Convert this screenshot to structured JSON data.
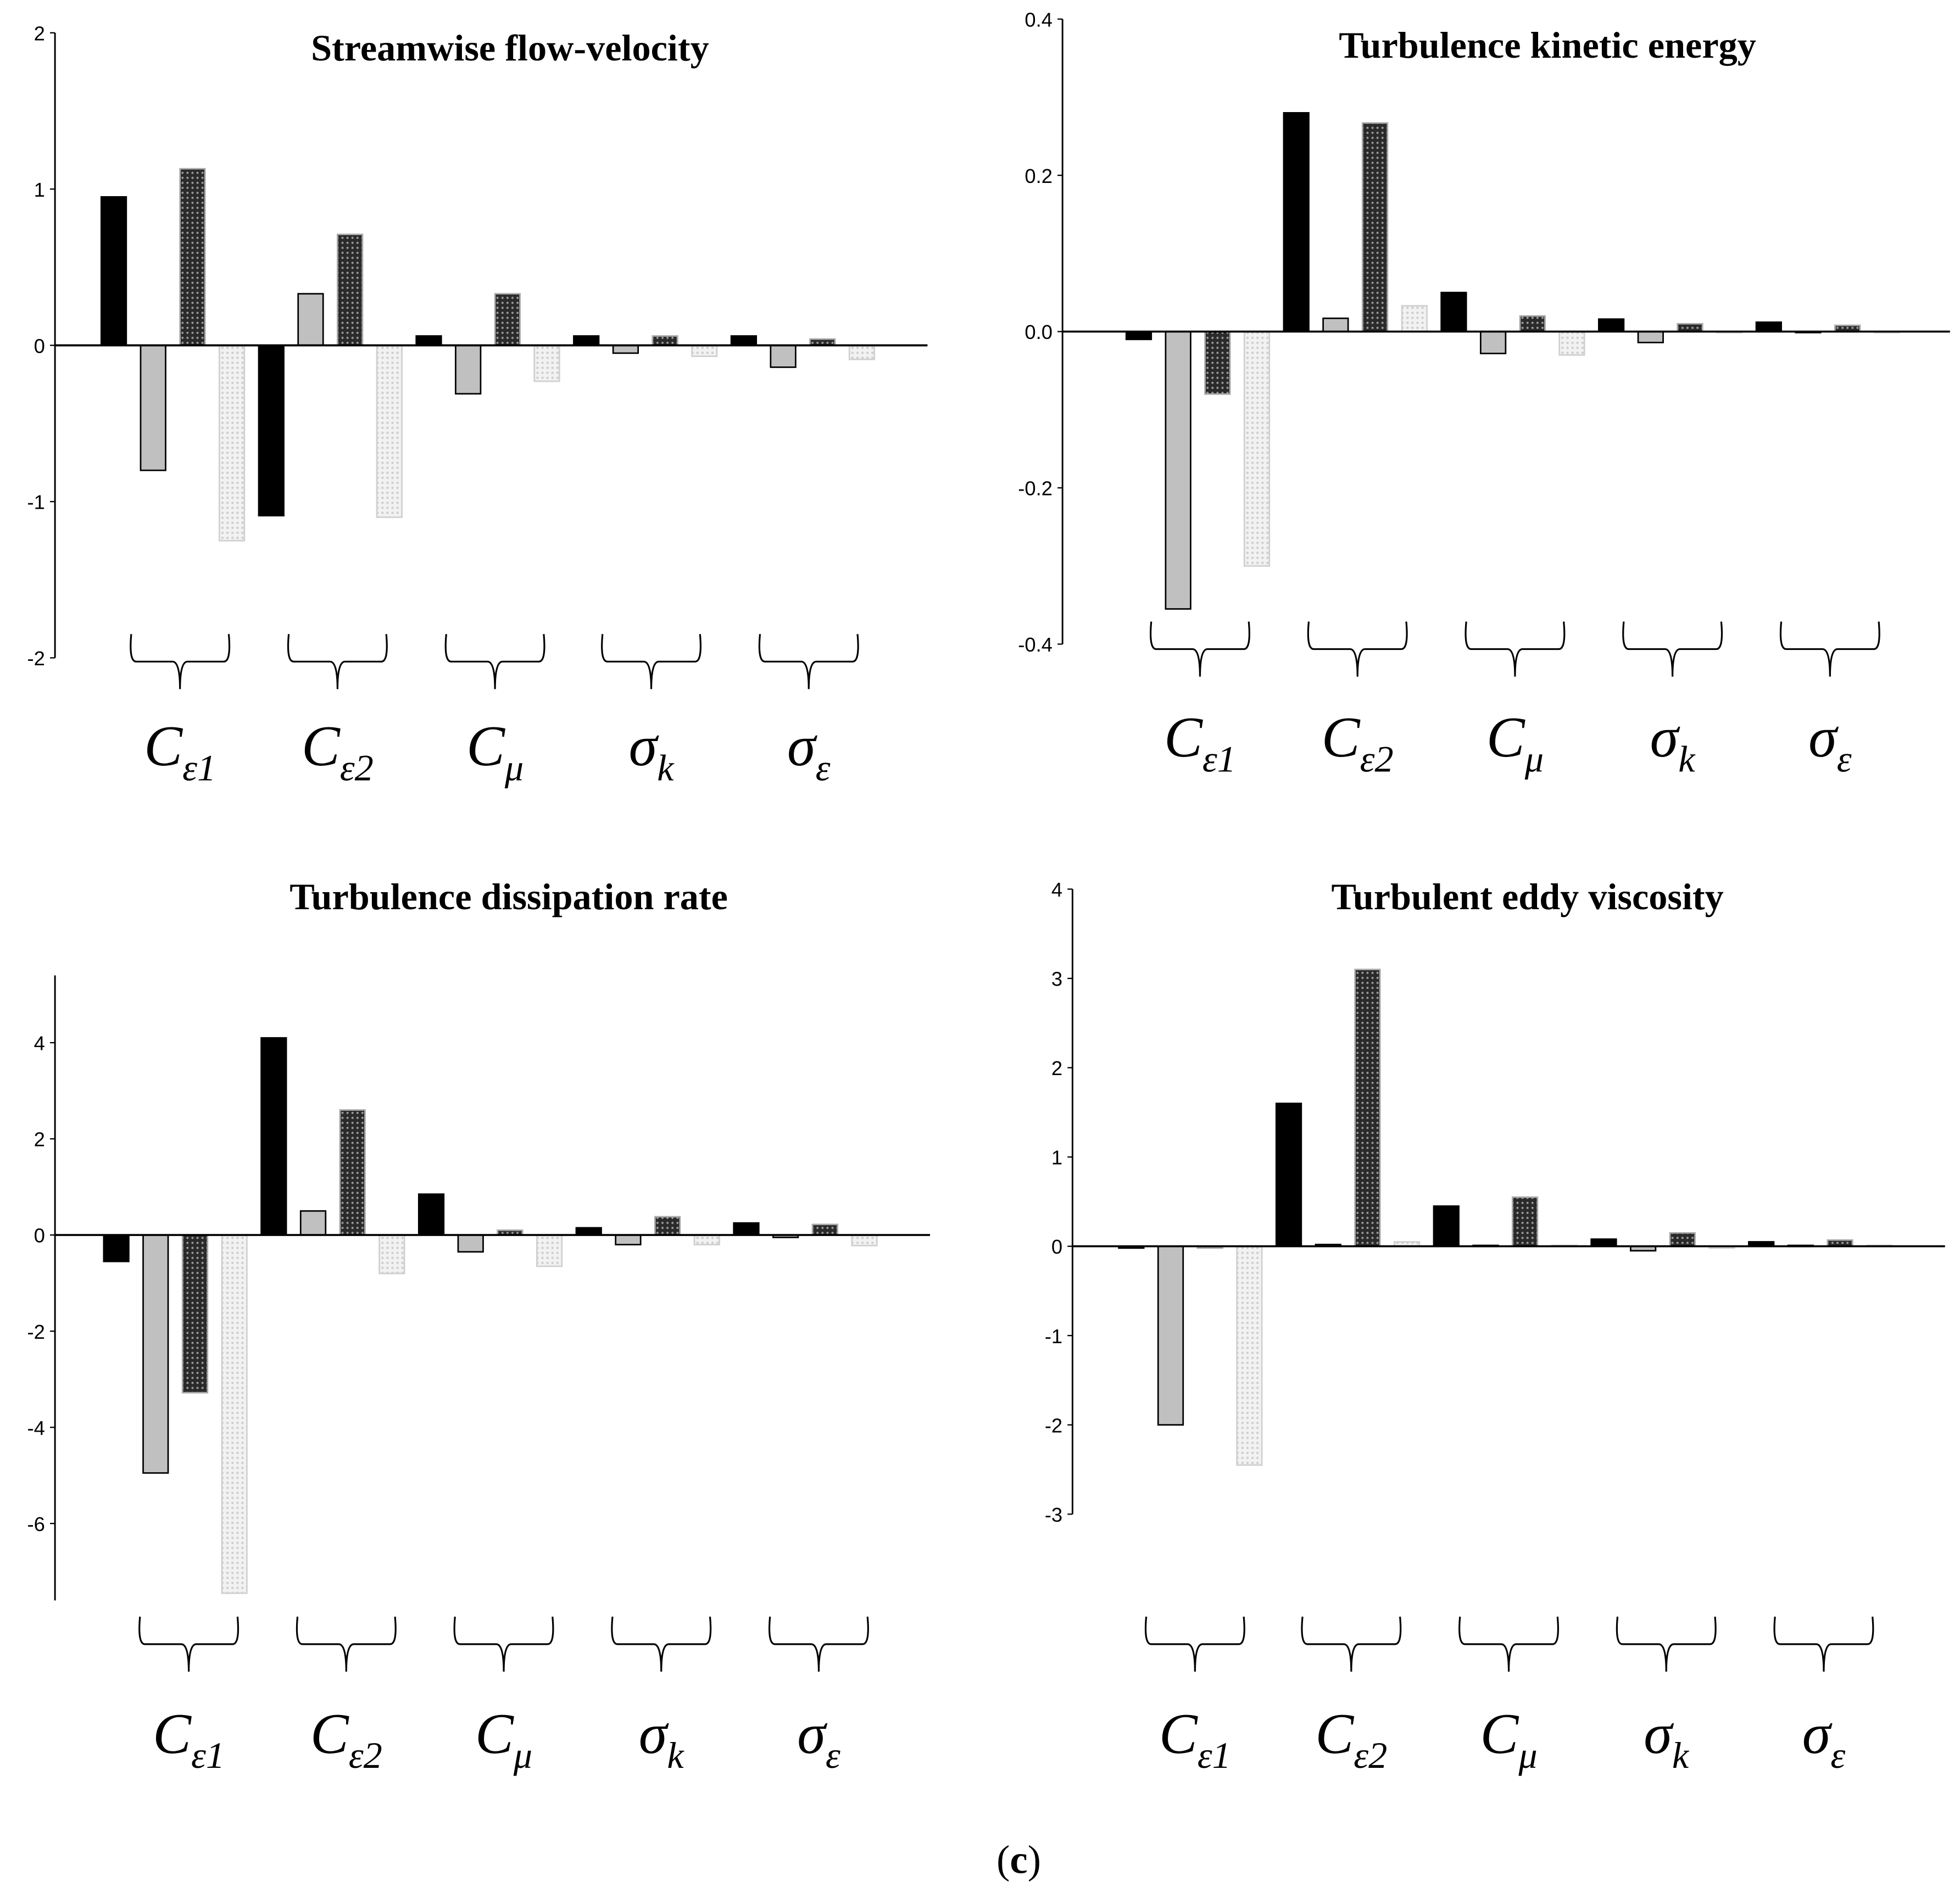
{
  "caption": {
    "open": "(",
    "letter": "c",
    "close": ")"
  },
  "colors": {
    "series1": "#000000",
    "series2": "#c0c0c0",
    "series3": "#3a3a3a",
    "series4": "#e6e6e6"
  },
  "chart_data": [
    {
      "type": "bar",
      "title": "Streamwise flow-velocity",
      "ylim": [
        -2,
        2
      ],
      "yticks": [
        "2",
        "1",
        "0",
        "-1",
        "-2"
      ],
      "ytick_values": [
        2,
        1,
        0,
        -1,
        -2
      ],
      "categories": [
        {
          "base": "C",
          "sub": "ε1"
        },
        {
          "base": "C",
          "sub": "ε2"
        },
        {
          "base": "C",
          "sub": "μ"
        },
        {
          "base": "σ",
          "sub": "k"
        },
        {
          "base": "σ",
          "sub": "ε"
        }
      ],
      "series": [
        {
          "values": [
            0.95,
            -1.09,
            0.06,
            0.06,
            0.06
          ]
        },
        {
          "values": [
            -0.8,
            0.33,
            -0.31,
            -0.05,
            -0.14
          ]
        },
        {
          "values": [
            1.13,
            0.71,
            0.33,
            0.06,
            0.04
          ]
        },
        {
          "values": [
            -1.25,
            -1.1,
            -0.23,
            -0.07,
            -0.09
          ]
        }
      ],
      "legend": "none",
      "grid": false
    },
    {
      "type": "bar",
      "title": "Turbulence kinetic energy",
      "ylim": [
        -0.4,
        0.4
      ],
      "yticks": [
        "0.4",
        "0.2",
        "0.0",
        "-0.2",
        "-0.4"
      ],
      "ytick_values": [
        0.4,
        0.2,
        0,
        -0.2,
        -0.4
      ],
      "categories": [
        {
          "base": "C",
          "sub": "ε1"
        },
        {
          "base": "C",
          "sub": "ε2"
        },
        {
          "base": "C",
          "sub": "μ"
        },
        {
          "base": "σ",
          "sub": "k"
        },
        {
          "base": "σ",
          "sub": "ε"
        }
      ],
      "series": [
        {
          "values": [
            -0.01,
            0.28,
            0.05,
            0.016,
            0.012
          ]
        },
        {
          "values": [
            -0.355,
            0.017,
            -0.028,
            -0.014,
            0.0
          ]
        },
        {
          "values": [
            -0.08,
            0.267,
            0.02,
            0.01,
            0.008
          ]
        },
        {
          "values": [
            -0.3,
            0.033,
            -0.03,
            -0.001,
            0.0
          ]
        }
      ],
      "legend": "none",
      "grid": false
    },
    {
      "type": "bar",
      "title": "Turbulence dissipation rate",
      "ylim": [
        -7.6,
        5.4
      ],
      "yticks": [
        "4",
        "2",
        "0",
        "-2",
        "-4",
        "-6"
      ],
      "ytick_values": [
        4,
        2,
        0,
        -2,
        -4,
        -6
      ],
      "categories": [
        {
          "base": "C",
          "sub": "ε1"
        },
        {
          "base": "C",
          "sub": "ε2"
        },
        {
          "base": "C",
          "sub": "μ"
        },
        {
          "base": "σ",
          "sub": "k"
        },
        {
          "base": "σ",
          "sub": "ε"
        }
      ],
      "series": [
        {
          "values": [
            -0.55,
            4.1,
            0.85,
            0.15,
            0.25
          ]
        },
        {
          "values": [
            -4.95,
            0.5,
            -0.35,
            -0.2,
            -0.05
          ]
        },
        {
          "values": [
            -3.28,
            2.6,
            0.1,
            0.38,
            0.22
          ]
        },
        {
          "values": [
            -7.45,
            -0.8,
            -0.65,
            -0.2,
            -0.22
          ]
        }
      ],
      "legend": "none",
      "grid": false
    },
    {
      "type": "bar",
      "title": "Turbulent eddy viscosity",
      "ylim": [
        -3,
        4
      ],
      "yticks": [
        "4",
        "3",
        "2",
        "1",
        "0",
        "-1",
        "-2",
        "-3"
      ],
      "ytick_values": [
        4,
        3,
        2,
        1,
        0,
        -1,
        -2,
        -3
      ],
      "categories": [
        {
          "base": "C",
          "sub": "ε1"
        },
        {
          "base": "C",
          "sub": "ε2"
        },
        {
          "base": "C",
          "sub": "μ"
        },
        {
          "base": "σ",
          "sub": "k"
        },
        {
          "base": "σ",
          "sub": "ε"
        }
      ],
      "series": [
        {
          "values": [
            -0.02,
            1.6,
            0.45,
            0.08,
            0.05
          ]
        },
        {
          "values": [
            -2.0,
            0.02,
            0.01,
            -0.05,
            0.01
          ]
        },
        {
          "values": [
            -0.02,
            3.1,
            0.55,
            0.15,
            0.07
          ]
        },
        {
          "values": [
            -2.45,
            0.05,
            0.01,
            -0.02,
            0.01
          ]
        }
      ],
      "legend": "none",
      "grid": false
    }
  ]
}
